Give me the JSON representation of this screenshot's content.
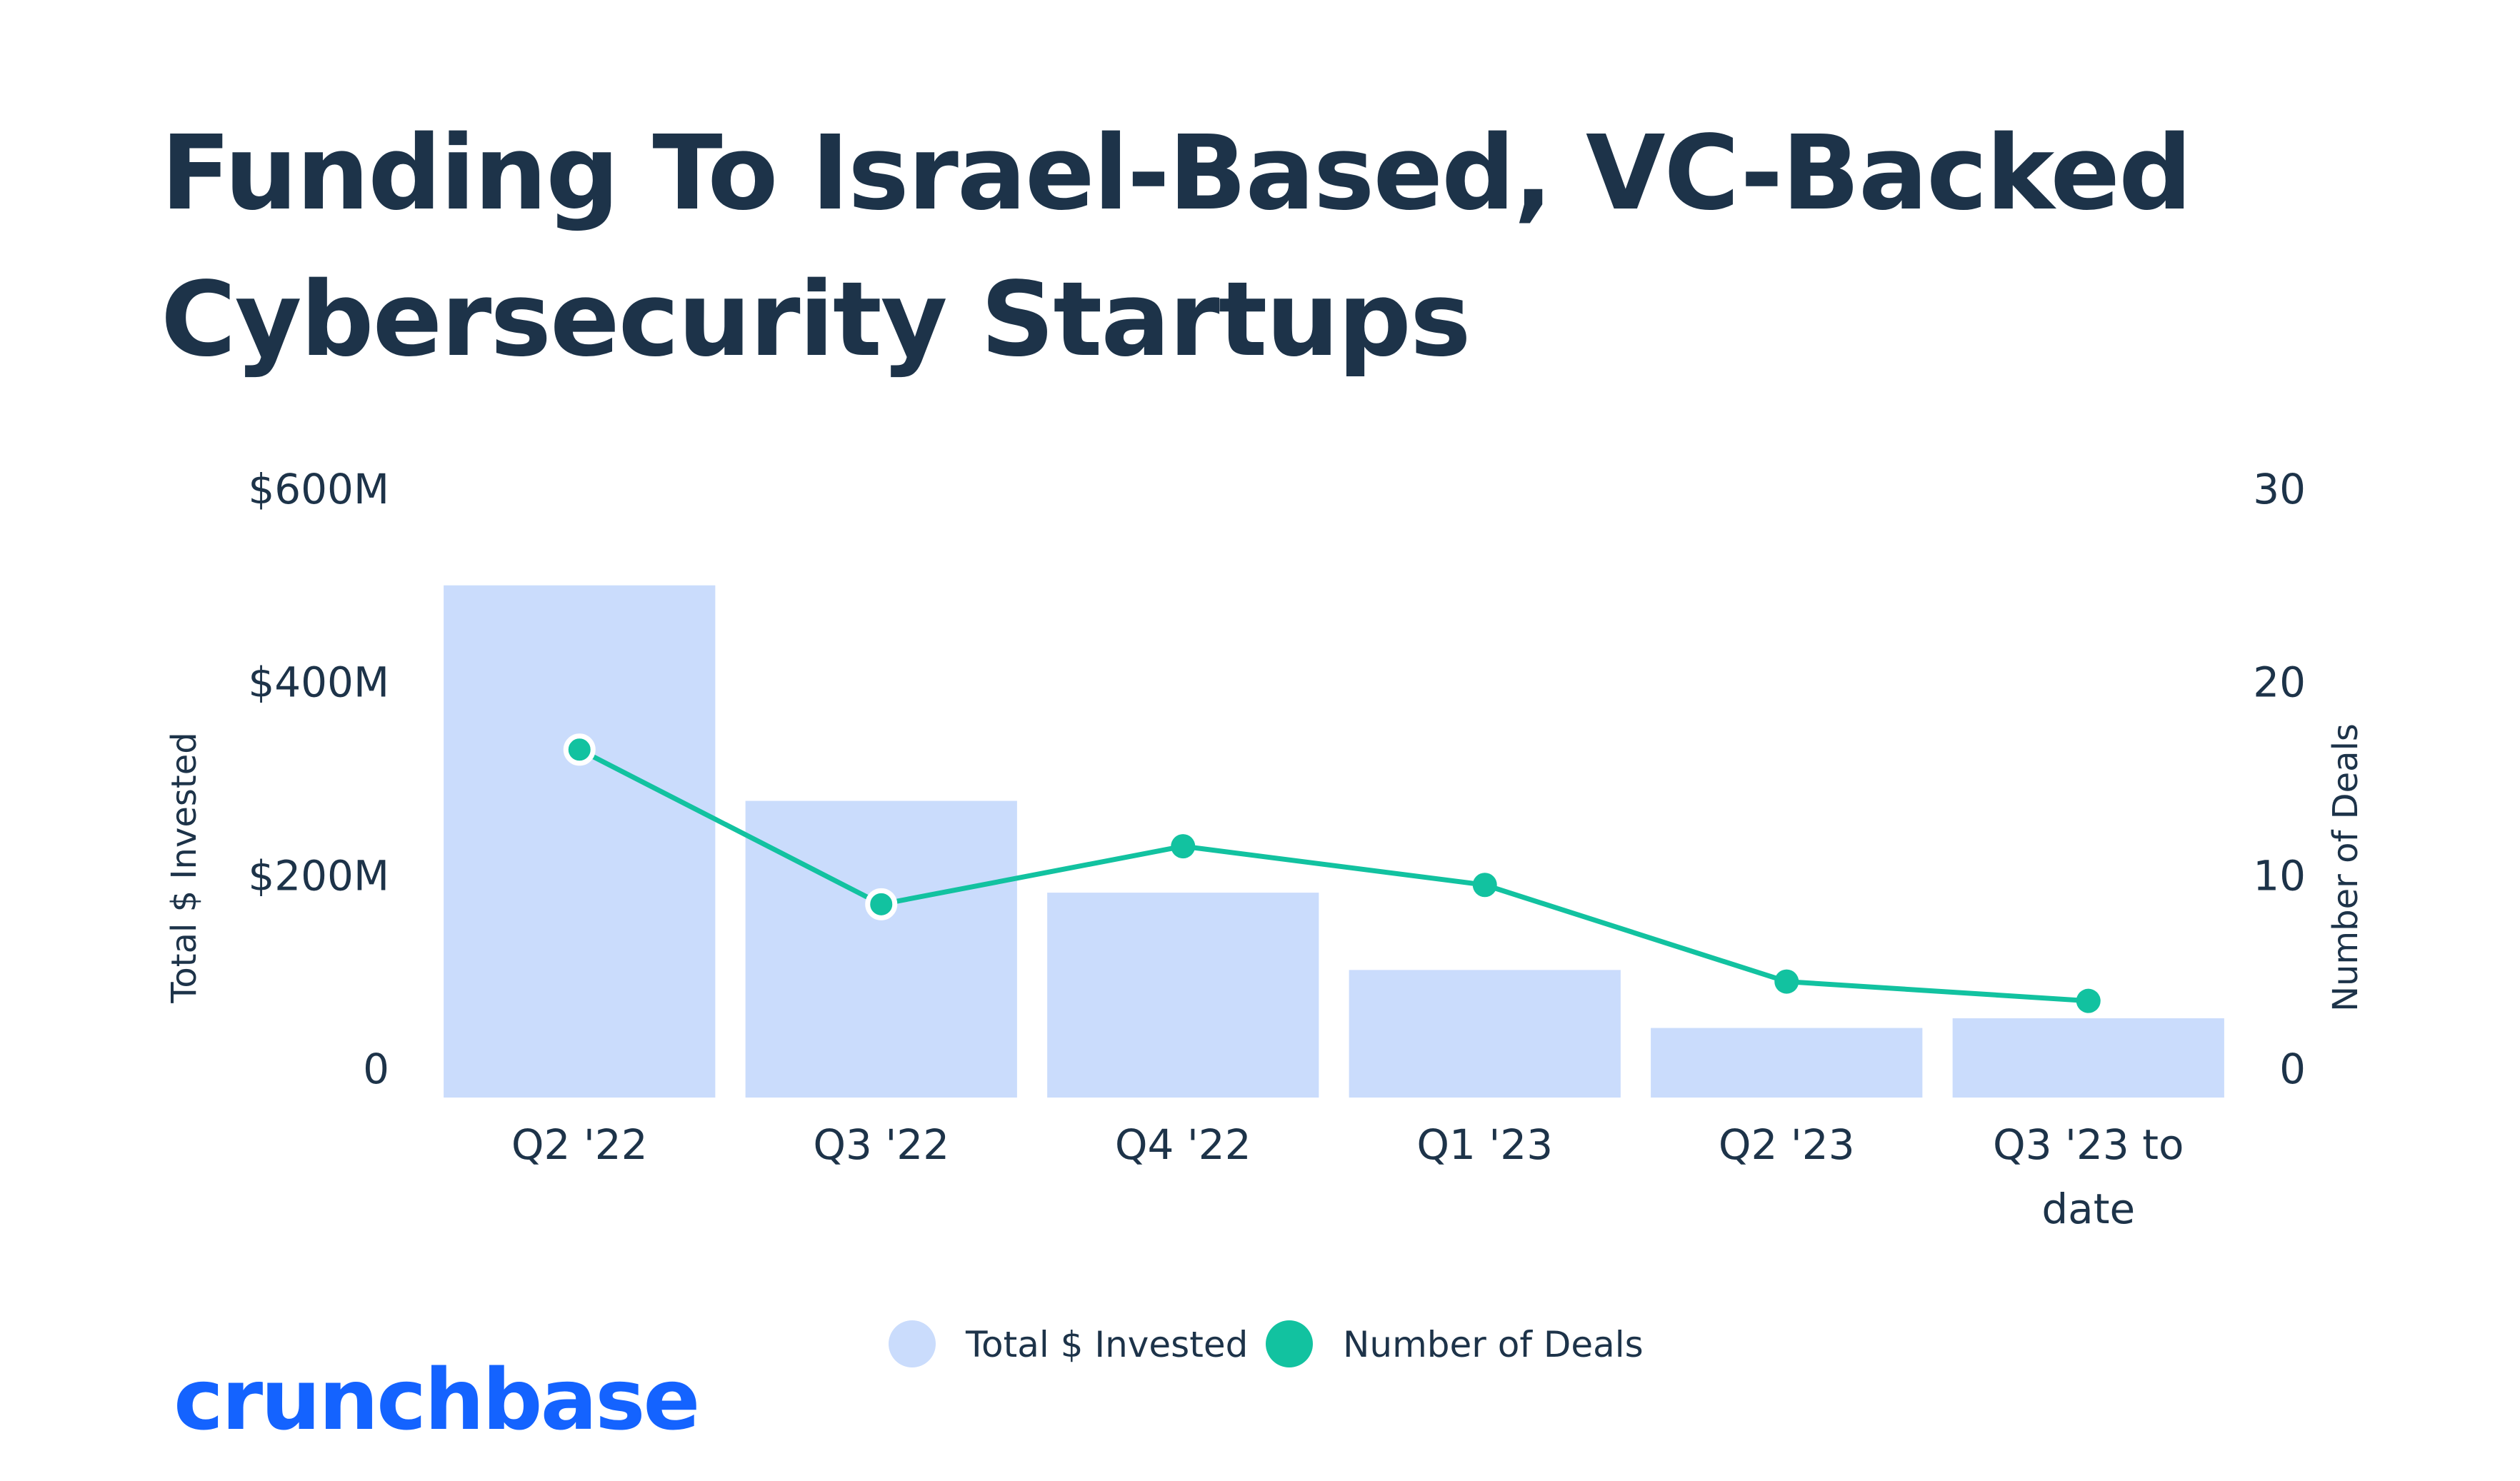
{
  "title": "Funding To Israel-Based, VC-Backed Cybersecurity Startups",
  "brand": {
    "logo_text": "crunchbase",
    "logo_color": "#1463ff"
  },
  "colors": {
    "bar": "#cadcfc",
    "line": "#12c2a0",
    "text": "#1d3349"
  },
  "chart_data": {
    "type": "bar",
    "categories": [
      "Q2 '22",
      "Q3 '22",
      "Q4 '22",
      "Q1 '23",
      "Q2 '23",
      "Q3 '23 to date"
    ],
    "category_lines": [
      [
        "Q2 '22"
      ],
      [
        "Q3 '22"
      ],
      [
        "Q4 '22"
      ],
      [
        "Q1 '23"
      ],
      [
        "Q2 '23"
      ],
      [
        "Q3 '23 to",
        "date"
      ]
    ],
    "series": [
      {
        "name": "Total $ Invested",
        "type": "bar",
        "axis": "left",
        "values": [
          530000000,
          307000000,
          212000000,
          132000000,
          72000000,
          82000000
        ]
      },
      {
        "name": "Number of Deals",
        "type": "line",
        "axis": "right",
        "values": [
          18,
          10,
          13,
          11,
          6,
          5
        ]
      }
    ],
    "ylabel_left": "Total $ Invested",
    "ylabel_right": "Number of Deals",
    "ylim_left": [
      0,
      600000000
    ],
    "ylim_right": [
      0,
      30
    ],
    "left_ticks": [
      {
        "value": 0,
        "label": "0"
      },
      {
        "value": 200000000,
        "label": "$200M"
      },
      {
        "value": 400000000,
        "label": "$400M"
      },
      {
        "value": 600000000,
        "label": "$600M"
      }
    ],
    "right_ticks": [
      {
        "value": 0,
        "label": "0"
      },
      {
        "value": 10,
        "label": "10"
      },
      {
        "value": 20,
        "label": "20"
      },
      {
        "value": 30,
        "label": "30"
      }
    ],
    "grid": false,
    "legend_position": "bottom-center",
    "legend": [
      {
        "label": "Total $ Invested",
        "color": "#cadcfc"
      },
      {
        "label": "Number of Deals",
        "color": "#12c2a0"
      }
    ]
  }
}
